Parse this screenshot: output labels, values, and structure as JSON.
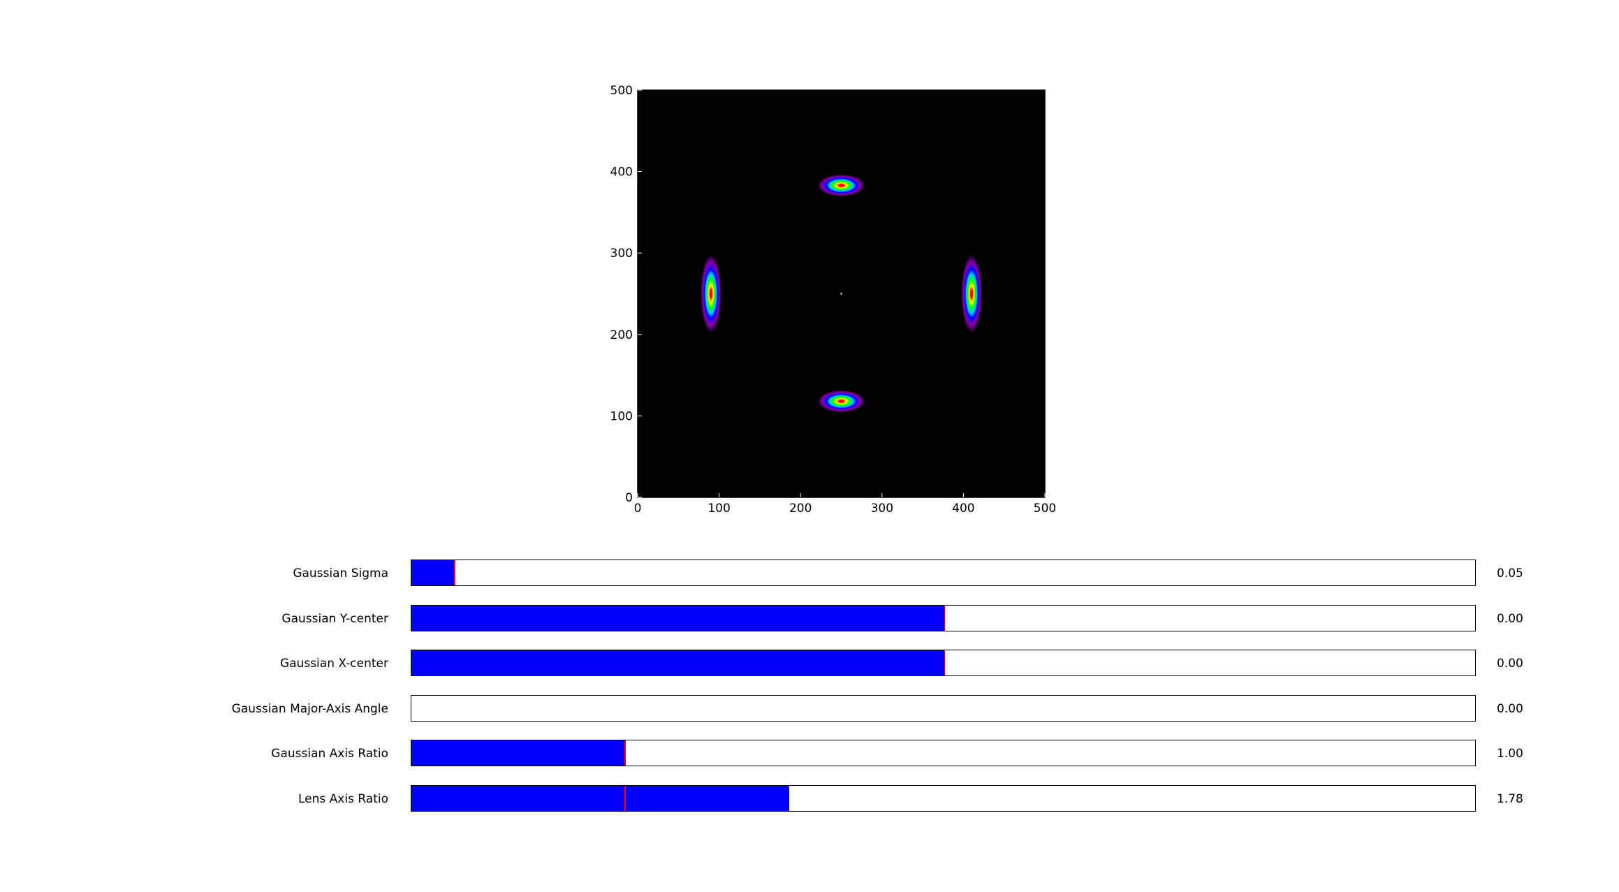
{
  "plot": {
    "xlim": [
      0,
      500
    ],
    "ylim": [
      0,
      500
    ],
    "x_ticks": [
      "0",
      "100",
      "200",
      "300",
      "400",
      "500"
    ],
    "y_ticks": [
      "0",
      "100",
      "200",
      "300",
      "400",
      "500"
    ],
    "background": "#000000",
    "colormap": [
      "#000000",
      "#8b00b0",
      "#0000ff",
      "#00c8ff",
      "#00ff00",
      "#ffff00",
      "#ff0000",
      "#ffffff"
    ],
    "sources": [
      {
        "name": "top",
        "x": 250,
        "y": 383
      },
      {
        "name": "bottom",
        "x": 250,
        "y": 118
      },
      {
        "name": "left",
        "x": 90,
        "y": 250
      },
      {
        "name": "right",
        "x": 410,
        "y": 250
      }
    ],
    "center_marker": {
      "x": 250,
      "y": 250
    }
  },
  "sliders": [
    {
      "key": "sigma",
      "label": "Gaussian Sigma",
      "value": "0.05",
      "fill": 0.04,
      "init": 0.04
    },
    {
      "key": "ycenter",
      "label": "Gaussian Y-center",
      "value": "0.00",
      "fill": 0.5,
      "init": 0.5
    },
    {
      "key": "xcenter",
      "label": "Gaussian X-center",
      "value": "0.00",
      "fill": 0.5,
      "init": 0.5
    },
    {
      "key": "angle",
      "label": "Gaussian Major-Axis Angle",
      "value": "0.00",
      "fill": 0.0,
      "init": 0.0
    },
    {
      "key": "axis-ratio",
      "label": "Gaussian Axis Ratio",
      "value": "1.00",
      "fill": 0.2,
      "init": 0.2
    },
    {
      "key": "lens-axis-ratio",
      "label": "Lens Axis Ratio",
      "value": "1.78",
      "fill": 0.355,
      "init": 0.2
    }
  ],
  "colors": {
    "slider_fill": "#0000ff",
    "slider_init_line": "#ff0000"
  }
}
